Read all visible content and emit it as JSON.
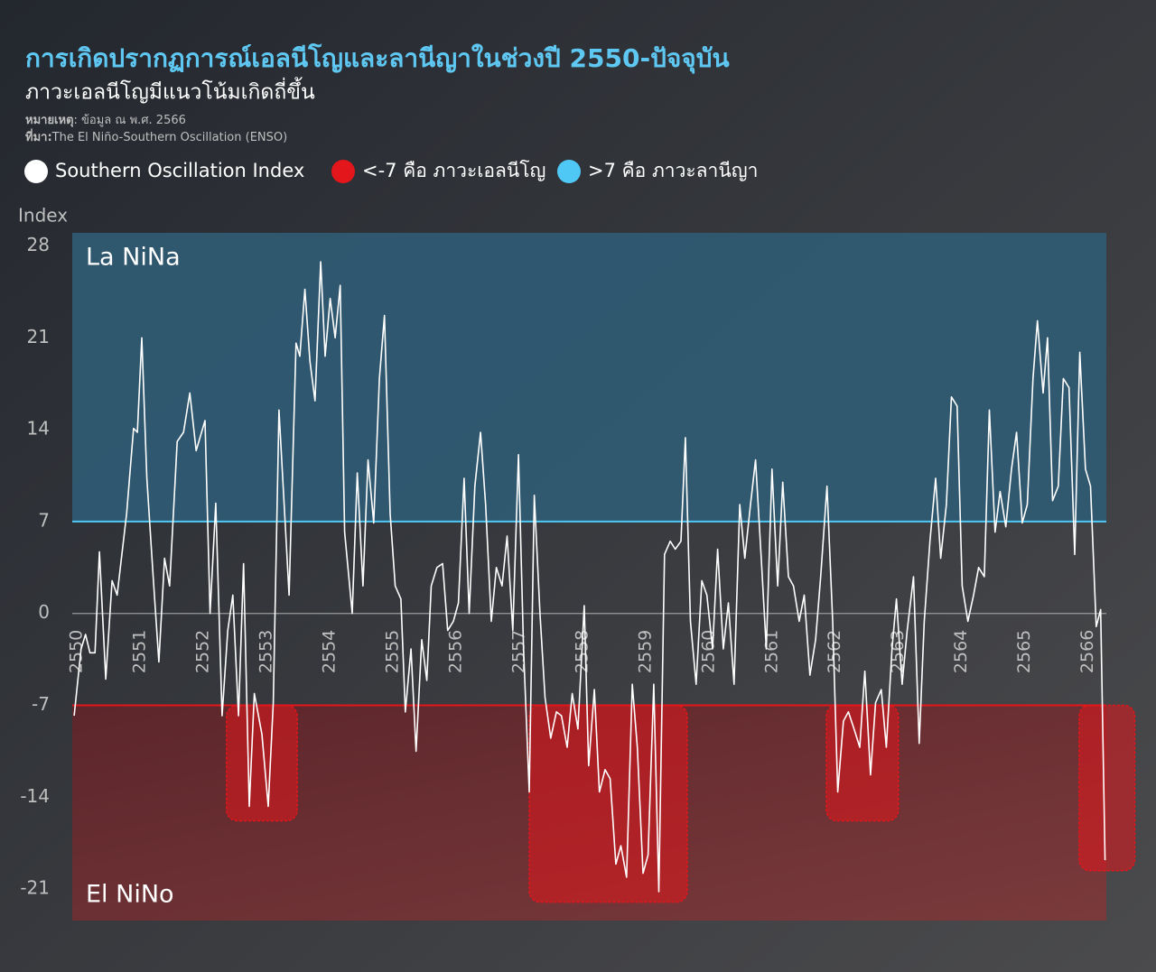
{
  "chart_data": {
    "type": "line",
    "title": "การเกิดปรากฏการณ์เอลนีโญและลานีญาในช่วงปี 2550-ปัจจุบัน",
    "subtitle": "ภาวะเอลนีโญมีแนวโน้มเกิดถี่ขึ้น",
    "note_label": "หมายเหตุ",
    "note": ": ข้อมูล ณ พ.ศ. 2566",
    "source_label": "ที่มา:",
    "source": "The El Niño-Southern Oscillation (ENSO)",
    "y_label": "Index",
    "xlim": [
      2549.93,
      2566.29
    ],
    "xticks": [
      2550,
      2551,
      2552,
      2553,
      2554,
      2555,
      2556,
      2557,
      2558,
      2559,
      2560,
      2561,
      2562,
      2563,
      2564,
      2565,
      2566
    ],
    "ylim": [
      -23.4,
      29
    ],
    "yticks": [
      28,
      21,
      14,
      7,
      0,
      -7,
      -14,
      -21
    ],
    "zero_line": true,
    "x": [
      2549.96,
      2550.07,
      2550.14,
      2550.21,
      2550.29,
      2550.36,
      2550.46,
      2550.56,
      2550.64,
      2550.79,
      2550.9,
      2550.96,
      2551.03,
      2551.11,
      2551.21,
      2551.3,
      2551.39,
      2551.47,
      2551.59,
      2551.69,
      2551.79,
      2551.89,
      2552.03,
      2552.11,
      2552.2,
      2552.3,
      2552.39,
      2552.47,
      2552.56,
      2552.64,
      2552.73,
      2552.81,
      2552.93,
      2553.03,
      2553.11,
      2553.2,
      2553.29,
      2553.36,
      2553.47,
      2553.53,
      2553.61,
      2553.69,
      2553.77,
      2553.86,
      2553.93,
      2554.01,
      2554.09,
      2554.17,
      2554.24,
      2554.36,
      2554.44,
      2554.53,
      2554.61,
      2554.7,
      2554.79,
      2554.87,
      2554.96,
      2555.04,
      2555.13,
      2555.2,
      2555.29,
      2555.37,
      2555.46,
      2555.54,
      2555.61,
      2555.7,
      2555.79,
      2555.87,
      2555.96,
      2556.04,
      2556.13,
      2556.21,
      2556.3,
      2556.39,
      2556.47,
      2556.56,
      2556.64,
      2556.73,
      2556.81,
      2556.9,
      2556.99,
      2557.07,
      2557.16,
      2557.24,
      2557.33,
      2557.41,
      2557.5,
      2557.59,
      2557.67,
      2557.76,
      2557.84,
      2557.93,
      2558.03,
      2558.1,
      2558.19,
      2558.27,
      2558.36,
      2558.44,
      2558.53,
      2558.61,
      2558.7,
      2558.79,
      2558.87,
      2558.96,
      2559.04,
      2559.13,
      2559.21,
      2559.3,
      2559.39,
      2559.47,
      2559.56,
      2559.63,
      2559.71,
      2559.8,
      2559.89,
      2559.97,
      2560.06,
      2560.14,
      2560.23,
      2560.31,
      2560.4,
      2560.49,
      2560.57,
      2560.66,
      2560.74,
      2560.83,
      2560.91,
      2561,
      2561.09,
      2561.17,
      2561.26,
      2561.34,
      2561.43,
      2561.51,
      2561.6,
      2561.69,
      2561.77,
      2561.87,
      2561.96,
      2562.04,
      2562.13,
      2562.21,
      2562.3,
      2562.39,
      2562.47,
      2562.56,
      2562.64,
      2562.73,
      2562.81,
      2562.9,
      2562.97,
      2563.06,
      2563.14,
      2563.24,
      2563.33,
      2563.41,
      2563.5,
      2563.59,
      2563.67,
      2563.76,
      2563.84,
      2563.93,
      2564.01,
      2564.1,
      2564.19,
      2564.27,
      2564.36,
      2564.44,
      2564.53,
      2564.61,
      2564.7,
      2564.79,
      2564.87,
      2564.96,
      2565.04,
      2565.13,
      2565.2,
      2565.29,
      2565.36,
      2565.44,
      2565.53,
      2565.61,
      2565.7,
      2565.79,
      2565.87,
      2565.96,
      2566.04,
      2566.13,
      2566.2,
      2566.27
    ],
    "series": [
      {
        "name": "Southern Oscillation Index",
        "color": "#ffffff",
        "values": [
          -7.8,
          -2.7,
          -1.6,
          -3,
          -3,
          4.7,
          -5,
          2.5,
          1.4,
          7.6,
          14.1,
          13.8,
          21,
          10.3,
          2.8,
          -3.7,
          4.2,
          2.1,
          13.1,
          13.8,
          16.8,
          12.4,
          14.7,
          0,
          8.4,
          -7.8,
          -1.3,
          1.4,
          -7.8,
          3.8,
          -14.7,
          -6.1,
          -9.2,
          -14.7,
          -6.8,
          15.5,
          7.6,
          1.4,
          20.6,
          19.6,
          24.7,
          19.2,
          16.2,
          26.8,
          19.6,
          24,
          21,
          25,
          6.2,
          0,
          10.7,
          2.1,
          11.7,
          6.9,
          17.9,
          22.7,
          7.6,
          2.1,
          1.1,
          -7.5,
          -2.7,
          -10.5,
          -2,
          -5.1,
          2.1,
          3.5,
          3.8,
          -1.3,
          -0.6,
          0.8,
          10.3,
          0,
          9.7,
          13.8,
          8.3,
          -0.6,
          3.5,
          2.1,
          5.9,
          -1.3,
          12.1,
          -2.7,
          -13.6,
          9,
          0,
          -6.4,
          -9.5,
          -7.5,
          -7.8,
          -10.2,
          -6.1,
          -8.8,
          0.6,
          -11.6,
          -5.8,
          -13.6,
          -11.9,
          -12.6,
          -19.1,
          -17.7,
          -20.1,
          -5.4,
          -10.2,
          -19.8,
          -18.4,
          -5.4,
          -21.2,
          4.5,
          5.5,
          4.9,
          5.5,
          13.4,
          -0.6,
          -5.4,
          2.5,
          1.4,
          -2.7,
          4.9,
          -2.7,
          0.8,
          -5.4,
          8.3,
          4.2,
          8.3,
          11.7,
          4.2,
          -2.7,
          11,
          2.1,
          10,
          2.8,
          2.1,
          -0.6,
          1.4,
          -4.7,
          -2,
          2.8,
          9.7,
          -0.6,
          -13.6,
          -8.2,
          -7.5,
          -8.8,
          -10.2,
          -4.4,
          -12.3,
          -6.8,
          -5.8,
          -10.2,
          -2.7,
          1.1,
          -5.4,
          -1.3,
          2.8,
          -9.9,
          -0.6,
          5.5,
          10.3,
          4.2,
          8.3,
          16.5,
          15.8,
          2.1,
          -0.6,
          1.4,
          3.5,
          2.8,
          15.5,
          6.2,
          9.3,
          6.6,
          11,
          13.8,
          6.9,
          8.3,
          17.9,
          22.3,
          16.8,
          21,
          8.6,
          9.7,
          17.9,
          17.2,
          4.5,
          19.9,
          11,
          9.7,
          -1,
          0.3,
          -18.8
        ]
      }
    ],
    "bands": [
      {
        "name": "<-7 คือ ภาวะเอลนีโญ",
        "label": "El NiNo",
        "threshold": -7,
        "side": "below",
        "color": "#e3161b"
      },
      {
        "name": ">7 คือ ภาวะลานีญา",
        "label": "La NiNa",
        "threshold": 7,
        "side": "above",
        "color": "#4fc8f5"
      }
    ],
    "highlights": [
      {
        "x": [
          2552.37,
          2553.49
        ],
        "y": [
          -7,
          -15.8
        ]
      },
      {
        "x": [
          2557.16,
          2559.66
        ],
        "y": [
          -7,
          -22
        ]
      },
      {
        "x": [
          2561.86,
          2563.0
        ],
        "y": [
          -7,
          -15.8
        ]
      },
      {
        "x": [
          2565.86,
          2566.74
        ],
        "y": [
          -7,
          -19.6
        ]
      }
    ]
  }
}
